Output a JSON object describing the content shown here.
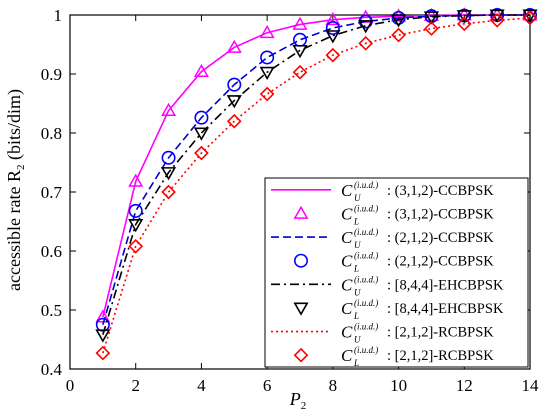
{
  "chart_data": {
    "type": "line",
    "title": "",
    "xlabel_main": "P",
    "xlabel_sub": "2",
    "ylabel": "accessible rate R",
    "ylabel_sub": "2",
    "ylabel_unit": "(bits/dim)",
    "xlim": [
      0,
      14
    ],
    "ylim": [
      0.4,
      1.0
    ],
    "xticks": [
      0,
      2,
      4,
      6,
      8,
      10,
      12,
      14
    ],
    "yticks": [
      0.4,
      0.5,
      0.6,
      0.7,
      0.8,
      0.9,
      1.0
    ],
    "xtick_labels": [
      "0",
      "2",
      "4",
      "6",
      "8",
      "10",
      "12",
      "14"
    ],
    "ytick_labels": [
      "0.4",
      "0.5",
      "0.6",
      "0.7",
      "0.8",
      "0.9",
      "1"
    ],
    "grid": false,
    "legend_position": "bottom-right",
    "series": [
      {
        "name": ": (3,1,2)-CCBPSK",
        "bound": "U",
        "style": "solid",
        "marker": "none",
        "color": "#ff00ff",
        "x": [
          1,
          2,
          3,
          4,
          5,
          6,
          7,
          8,
          9,
          10,
          11,
          12,
          13,
          14
        ],
        "y": [
          0.488,
          0.718,
          0.838,
          0.904,
          0.945,
          0.97,
          0.984,
          0.992,
          0.996,
          0.998,
          0.999,
          1.0,
          1.0,
          1.0
        ]
      },
      {
        "name": ": (3,1,2)-CCBPSK",
        "bound": "L",
        "style": "none",
        "marker": "triangle-up",
        "color": "#ff00ff",
        "x": [
          1,
          2,
          3,
          4,
          5,
          6,
          7,
          8,
          9,
          10,
          11,
          12,
          13,
          14
        ],
        "y": [
          0.488,
          0.718,
          0.838,
          0.904,
          0.945,
          0.97,
          0.984,
          0.992,
          0.996,
          0.998,
          0.999,
          1.0,
          1.0,
          1.0
        ]
      },
      {
        "name": ": (2,1,2)-CCBPSK",
        "bound": "U",
        "style": "dashed",
        "marker": "none",
        "color": "#0000cc",
        "x": [
          1,
          2,
          3,
          4,
          5,
          6,
          7,
          8,
          9,
          10,
          11,
          12,
          13,
          14
        ],
        "y": [
          0.475,
          0.668,
          0.758,
          0.826,
          0.882,
          0.928,
          0.958,
          0.978,
          0.989,
          0.995,
          0.998,
          0.999,
          1.0,
          1.0
        ]
      },
      {
        "name": ": (2,1,2)-CCBPSK",
        "bound": "L",
        "style": "none",
        "marker": "circle",
        "color": "#0000ff",
        "x": [
          1,
          2,
          3,
          4,
          5,
          6,
          7,
          8,
          9,
          10,
          11,
          12,
          13,
          14
        ],
        "y": [
          0.475,
          0.668,
          0.758,
          0.826,
          0.882,
          0.928,
          0.958,
          0.978,
          0.989,
          0.995,
          0.998,
          0.999,
          1.0,
          1.0
        ]
      },
      {
        "name": ": [8,4,4]-EHCBPSK",
        "bound": "U",
        "style": "dashdot",
        "marker": "none",
        "color": "#000000",
        "x": [
          1,
          2,
          3,
          4,
          5,
          6,
          7,
          8,
          9,
          10,
          11,
          12,
          13,
          14
        ],
        "y": [
          0.458,
          0.645,
          0.733,
          0.8,
          0.855,
          0.903,
          0.94,
          0.965,
          0.982,
          0.992,
          0.997,
          0.999,
          1.0,
          1.0
        ]
      },
      {
        "name": ": [8,4,4]-EHCBPSK",
        "bound": "L",
        "style": "none",
        "marker": "triangle-down",
        "color": "#000000",
        "x": [
          1,
          2,
          3,
          4,
          5,
          6,
          7,
          8,
          9,
          10,
          11,
          12,
          13,
          14
        ],
        "y": [
          0.458,
          0.645,
          0.733,
          0.8,
          0.855,
          0.903,
          0.94,
          0.965,
          0.982,
          0.992,
          0.997,
          0.999,
          1.0,
          1.0
        ]
      },
      {
        "name": ": [2,1,2]-RCBPSK",
        "bound": "U",
        "style": "dotted",
        "marker": "none",
        "color": "#ff0000",
        "x": [
          1,
          2,
          3,
          4,
          5,
          6,
          7,
          8,
          9,
          10,
          11,
          12,
          13,
          14
        ],
        "y": [
          0.427,
          0.608,
          0.7,
          0.766,
          0.82,
          0.866,
          0.903,
          0.932,
          0.952,
          0.966,
          0.977,
          0.985,
          0.991,
          0.995
        ]
      },
      {
        "name": ": [2,1,2]-RCBPSK",
        "bound": "L",
        "style": "none",
        "marker": "diamond",
        "color": "#ff0000",
        "x": [
          1,
          2,
          3,
          4,
          5,
          6,
          7,
          8,
          9,
          10,
          11,
          12,
          13,
          14
        ],
        "y": [
          0.427,
          0.608,
          0.7,
          0.766,
          0.82,
          0.866,
          0.903,
          0.932,
          0.952,
          0.966,
          0.977,
          0.985,
          0.991,
          0.995
        ]
      }
    ],
    "legend_symbol": "C",
    "legend_superscript": "(i.u.d.)"
  }
}
